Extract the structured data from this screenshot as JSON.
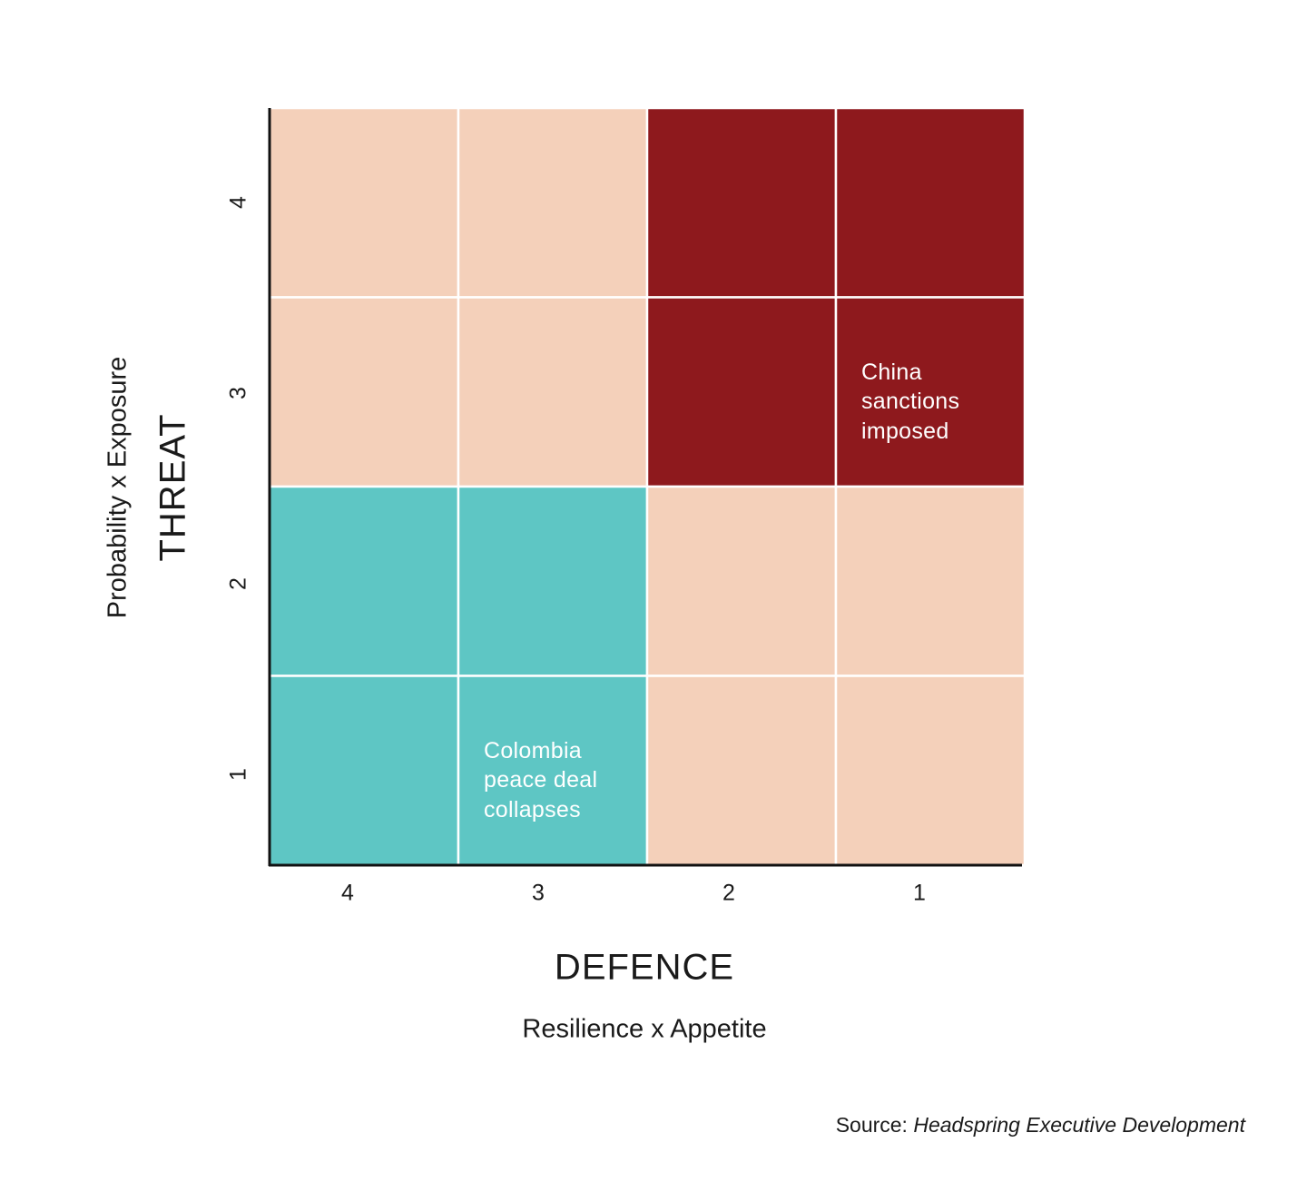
{
  "chart_data": {
    "type": "heatmap",
    "xlabel": "DEFENCE",
    "xsublabel": "Resilience x Appetite",
    "ylabel": "THREAT",
    "ysublabel": "Probability x Exposure",
    "x_categories": [
      "4",
      "3",
      "2",
      "1"
    ],
    "y_categories": [
      "4",
      "3",
      "2",
      "1"
    ],
    "colors": {
      "low": "#F4D0BA",
      "high": "#8E191D",
      "safe": "#5EC6C4",
      "grid": "#FFFFFF",
      "axis": "#111111"
    },
    "cells": [
      [
        "low",
        "low",
        "high",
        "high"
      ],
      [
        "low",
        "low",
        "high",
        "high"
      ],
      [
        "safe",
        "safe",
        "low",
        "low"
      ],
      [
        "safe",
        "safe",
        "low",
        "low"
      ]
    ],
    "annotations": [
      {
        "defence": "1",
        "threat": "3",
        "text": "China\nsanctions\nimposed"
      },
      {
        "defence": "3",
        "threat": "1",
        "text": "Colombia\npeace deal\ncollapses"
      }
    ]
  },
  "source": {
    "prefix": "Source: ",
    "name": "Headspring Executive Development"
  }
}
